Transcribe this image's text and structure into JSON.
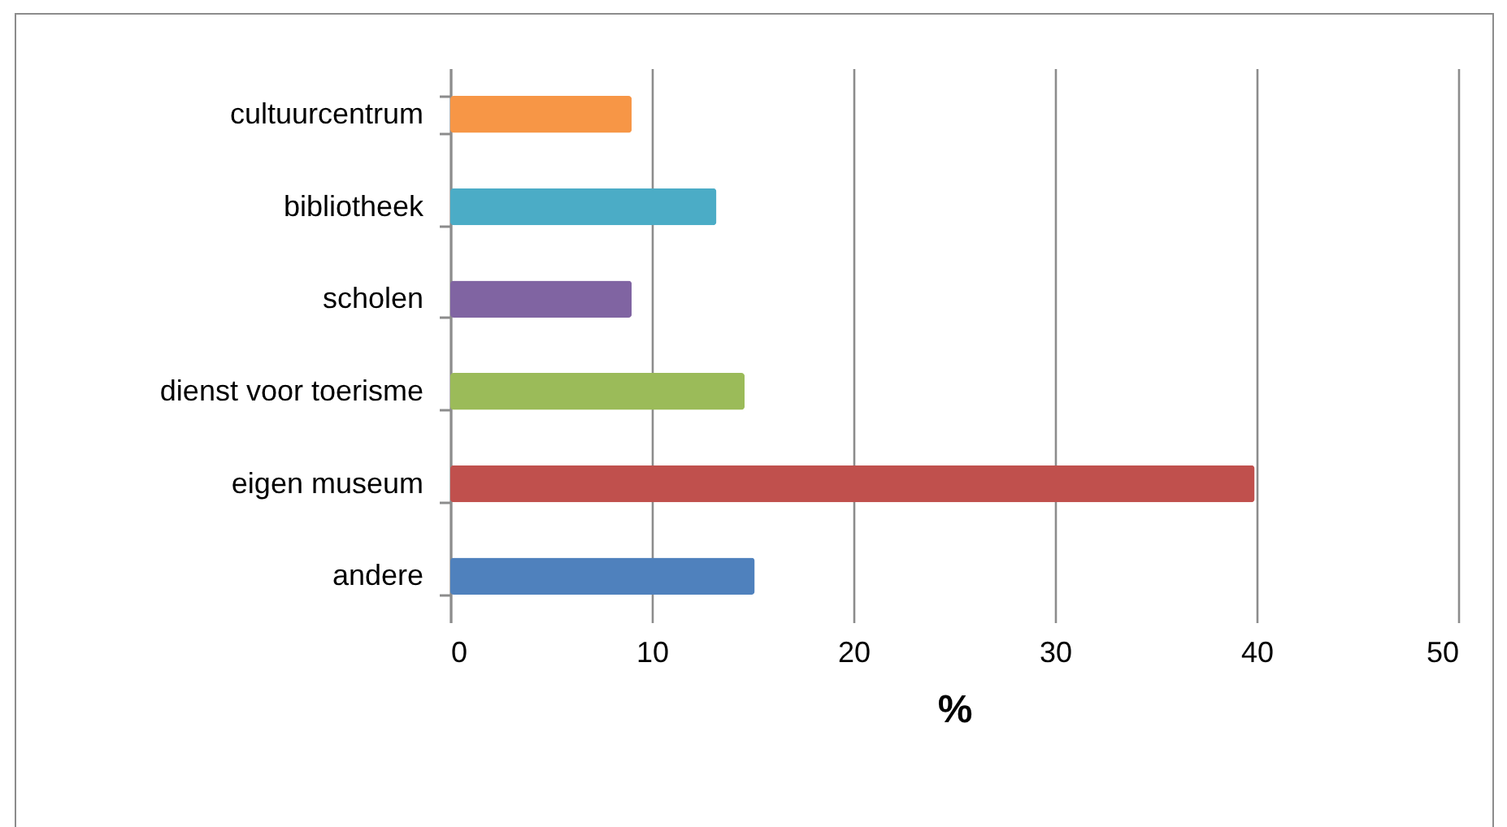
{
  "chart_data": {
    "type": "bar",
    "orientation": "horizontal",
    "xlabel": "%",
    "categories": [
      "cultuurcentrum",
      "bibliotheek",
      "scholen ",
      "dienst voor toerisme",
      "eigen museum",
      "andere"
    ],
    "values": [
      9,
      13.2,
      9,
      14.6,
      39.9,
      15.1
    ],
    "colors": [
      "#f79646",
      "#4bacc6",
      "#8064a2",
      "#9bbb59",
      "#c0504d",
      "#4f81bd"
    ],
    "xlim": [
      0,
      50
    ],
    "xticks": [
      0,
      10,
      20,
      30,
      40,
      50
    ],
    "grid": "x",
    "legend": false
  }
}
